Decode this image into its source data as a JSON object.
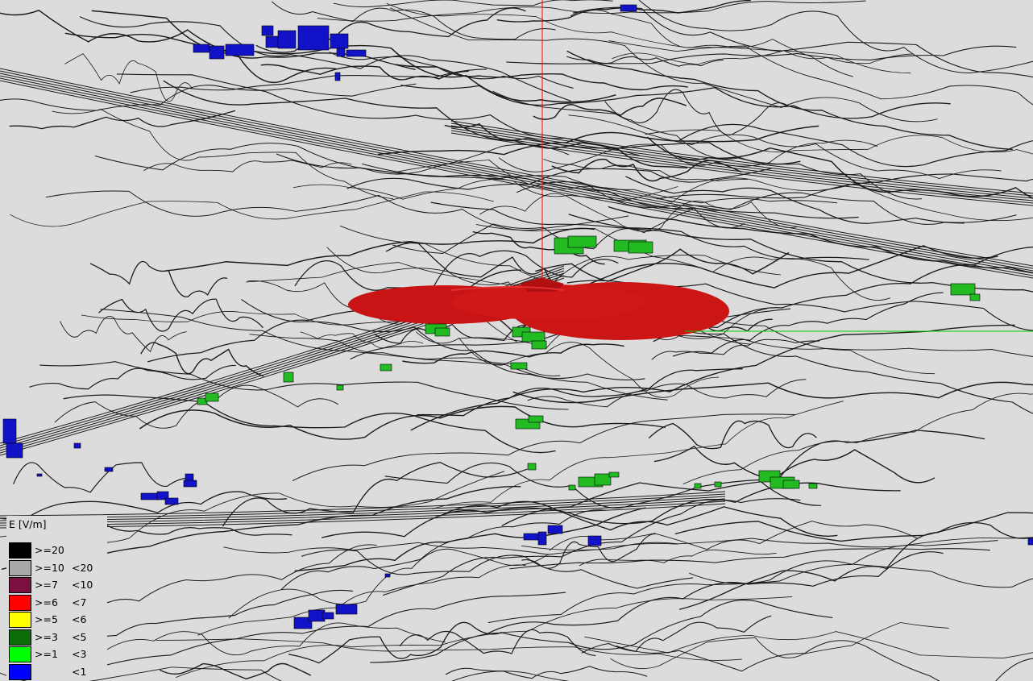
{
  "legend": {
    "title": "E [V/m]",
    "rows": [
      {
        "low": ">=20",
        "high": "",
        "color": "#000000"
      },
      {
        "low": ">=10",
        "high": "<20",
        "color": "#a9a9a9"
      },
      {
        "low": ">=7",
        "high": "<10",
        "color": "#7a1040"
      },
      {
        "low": ">=6",
        "high": "<7",
        "color": "#ff0000"
      },
      {
        "low": ">=5",
        "high": "<6",
        "color": "#ffff00"
      },
      {
        "low": ">=3",
        "high": "<5",
        "color": "#0b6e0b"
      },
      {
        "low": ">=1",
        "high": "<3",
        "color": "#00ff00"
      },
      {
        "low": "",
        "high": "<1",
        "color": "#0000ff"
      }
    ]
  },
  "colors": {
    "background": "#dcdcdc",
    "contour": "#1a1a1a",
    "field_surface": "#cc1111",
    "vertical_axis": "#ff0000",
    "horizontal_axis": "#00cc00",
    "building_low": "#1212c8",
    "building_mid": "#22bb22"
  }
}
